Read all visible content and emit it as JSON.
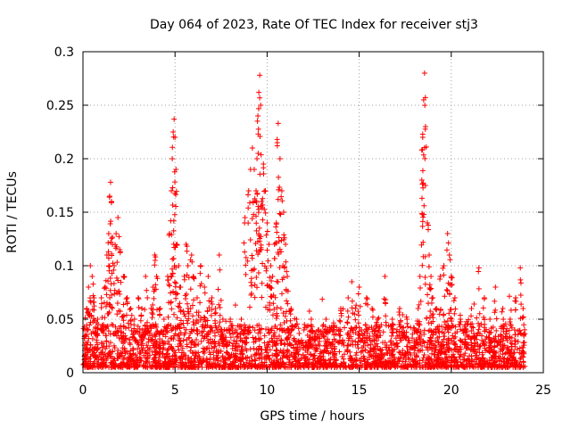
{
  "chart_data": {
    "type": "scatter",
    "title": "Day 064 of 2023, Rate Of TEC Index for receiver stj3",
    "xlabel": "GPS time / hours",
    "ylabel": "ROTI / TECUs",
    "xlim": [
      0,
      25
    ],
    "ylim": [
      0,
      0.3
    ],
    "xticks": [
      0,
      5,
      10,
      15,
      20,
      25
    ],
    "xtick_labels": [
      "0",
      "5",
      "10",
      "15",
      "20",
      "25"
    ],
    "yticks": [
      0,
      0.05,
      0.1,
      0.15,
      0.2,
      0.25,
      0.3
    ],
    "ytick_labels": [
      "0",
      "0.05",
      "0.1",
      "0.15",
      "0.2",
      "0.25",
      "0.3"
    ],
    "grid": true,
    "marker": "plus",
    "series_color": "#ff0000",
    "points": [
      [
        0.1,
        0.04
      ],
      [
        0.2,
        0.06
      ],
      [
        0.3,
        0.08
      ],
      [
        0.4,
        0.1
      ],
      [
        0.5,
        0.09
      ],
      [
        0.6,
        0.07
      ],
      [
        0.8,
        0.05
      ],
      [
        1.0,
        0.07
      ],
      [
        1.2,
        0.08
      ],
      [
        1.3,
        0.11
      ],
      [
        1.4,
        0.13
      ],
      [
        1.45,
        0.165
      ],
      [
        1.5,
        0.178
      ],
      [
        1.55,
        0.16
      ],
      [
        1.6,
        0.12
      ],
      [
        1.7,
        0.1
      ],
      [
        1.8,
        0.13
      ],
      [
        1.9,
        0.145
      ],
      [
        2.0,
        0.115
      ],
      [
        2.2,
        0.09
      ],
      [
        2.4,
        0.07
      ],
      [
        2.6,
        0.06
      ],
      [
        2.8,
        0.05
      ],
      [
        3.0,
        0.07
      ],
      [
        3.2,
        0.06
      ],
      [
        3.4,
        0.09
      ],
      [
        3.5,
        0.07
      ],
      [
        3.7,
        0.06
      ],
      [
        3.8,
        0.08
      ],
      [
        3.9,
        0.11
      ],
      [
        4.0,
        0.09
      ],
      [
        4.2,
        0.06
      ],
      [
        4.4,
        0.05
      ],
      [
        4.6,
        0.09
      ],
      [
        4.7,
        0.13
      ],
      [
        4.8,
        0.17
      ],
      [
        4.85,
        0.2
      ],
      [
        4.9,
        0.225
      ],
      [
        4.95,
        0.237
      ],
      [
        5.0,
        0.22
      ],
      [
        5.05,
        0.19
      ],
      [
        5.1,
        0.12
      ],
      [
        5.2,
        0.1
      ],
      [
        5.3,
        0.08
      ],
      [
        5.5,
        0.09
      ],
      [
        5.6,
        0.12
      ],
      [
        5.7,
        0.1
      ],
      [
        5.9,
        0.11
      ],
      [
        6.0,
        0.09
      ],
      [
        6.2,
        0.07
      ],
      [
        6.4,
        0.1
      ],
      [
        6.6,
        0.08
      ],
      [
        6.8,
        0.09
      ],
      [
        7.0,
        0.07
      ],
      [
        7.2,
        0.06
      ],
      [
        7.4,
        0.11
      ],
      [
        7.6,
        0.05
      ],
      [
        7.8,
        0.04
      ],
      [
        8.0,
        0.05
      ],
      [
        8.3,
        0.04
      ],
      [
        8.6,
        0.05
      ],
      [
        8.8,
        0.145
      ],
      [
        9.0,
        0.17
      ],
      [
        9.1,
        0.19
      ],
      [
        9.2,
        0.21
      ],
      [
        9.3,
        0.19
      ],
      [
        9.4,
        0.17
      ],
      [
        9.45,
        0.2
      ],
      [
        9.5,
        0.24
      ],
      [
        9.55,
        0.262
      ],
      [
        9.6,
        0.278
      ],
      [
        9.65,
        0.25
      ],
      [
        9.7,
        0.16
      ],
      [
        9.8,
        0.195
      ],
      [
        9.9,
        0.17
      ],
      [
        10.0,
        0.14
      ],
      [
        10.1,
        0.12
      ],
      [
        10.2,
        0.1
      ],
      [
        10.3,
        0.09
      ],
      [
        10.4,
        0.12
      ],
      [
        10.5,
        0.14
      ],
      [
        10.55,
        0.215
      ],
      [
        10.6,
        0.233
      ],
      [
        10.7,
        0.2
      ],
      [
        10.8,
        0.17
      ],
      [
        10.9,
        0.15
      ],
      [
        11.0,
        0.12
      ],
      [
        11.1,
        0.09
      ],
      [
        11.3,
        0.06
      ],
      [
        11.6,
        0.05
      ],
      [
        12.0,
        0.04
      ],
      [
        12.4,
        0.05
      ],
      [
        12.8,
        0.04
      ],
      [
        13.2,
        0.05
      ],
      [
        13.6,
        0.04
      ],
      [
        14.0,
        0.06
      ],
      [
        14.4,
        0.07
      ],
      [
        14.6,
        0.085
      ],
      [
        14.8,
        0.06
      ],
      [
        15.0,
        0.08
      ],
      [
        15.4,
        0.07
      ],
      [
        15.7,
        0.06
      ],
      [
        16.0,
        0.05
      ],
      [
        16.4,
        0.09
      ],
      [
        16.8,
        0.05
      ],
      [
        17.2,
        0.06
      ],
      [
        17.6,
        0.05
      ],
      [
        18.0,
        0.04
      ],
      [
        18.2,
        0.06
      ],
      [
        18.3,
        0.09
      ],
      [
        18.4,
        0.18
      ],
      [
        18.45,
        0.22
      ],
      [
        18.5,
        0.255
      ],
      [
        18.55,
        0.28
      ],
      [
        18.6,
        0.23
      ],
      [
        18.7,
        0.14
      ],
      [
        18.8,
        0.11
      ],
      [
        18.9,
        0.09
      ],
      [
        19.0,
        0.07
      ],
      [
        19.2,
        0.06
      ],
      [
        19.4,
        0.09
      ],
      [
        19.6,
        0.1
      ],
      [
        19.8,
        0.13
      ],
      [
        19.9,
        0.11
      ],
      [
        20.0,
        0.09
      ],
      [
        20.2,
        0.07
      ],
      [
        20.5,
        0.05
      ],
      [
        20.8,
        0.04
      ],
      [
        21.1,
        0.06
      ],
      [
        21.5,
        0.098
      ],
      [
        21.8,
        0.07
      ],
      [
        22.1,
        0.05
      ],
      [
        22.4,
        0.08
      ],
      [
        22.8,
        0.06
      ],
      [
        23.2,
        0.05
      ],
      [
        23.5,
        0.07
      ],
      [
        23.75,
        0.098
      ],
      [
        23.9,
        0.06
      ]
    ],
    "noise_band": [
      0.005,
      0.045
    ],
    "noise_xlim": [
      0,
      24
    ]
  }
}
